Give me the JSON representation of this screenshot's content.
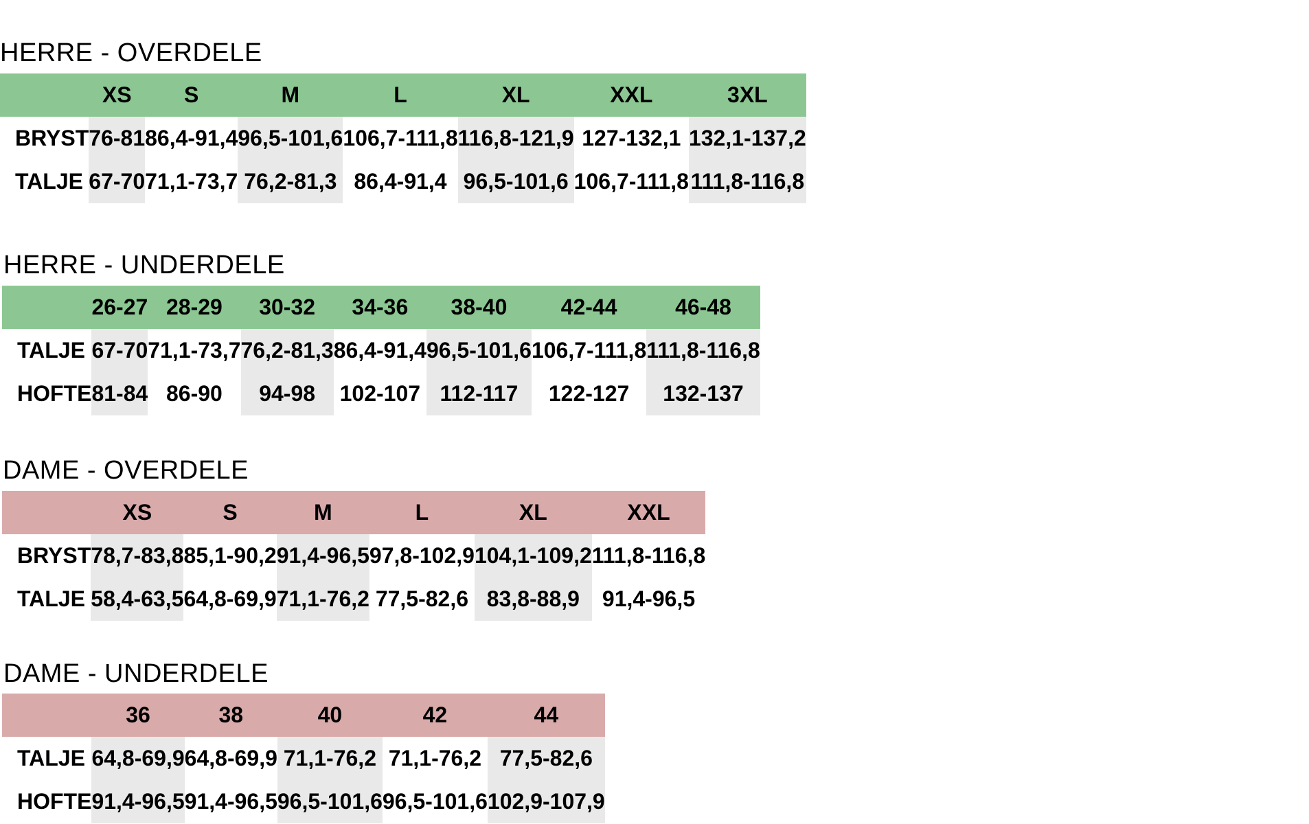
{
  "sections": [
    {
      "title": "HERRE - OVERDELE",
      "theme": "green",
      "header_color": "#8cc793",
      "sizes": [
        "XS",
        "S",
        "M",
        "L",
        "XL",
        "XXL",
        "3XL"
      ],
      "rows": [
        {
          "label": "BRYST",
          "values": [
            "76-81",
            "86,4-91,4",
            "96,5-101,6",
            "106,7-111,8",
            "116,8-121,9",
            "127-132,1",
            "132,1-137,2"
          ]
        },
        {
          "label": "TALJE",
          "values": [
            "67-70",
            "71,1-73,7",
            "76,2-81,3",
            "86,4-91,4",
            "96,5-101,6",
            "106,7-111,8",
            "111,8-116,8"
          ]
        }
      ]
    },
    {
      "title": "HERRE - UNDERDELE",
      "theme": "green",
      "header_color": "#8cc793",
      "sizes": [
        "26-27",
        "28-29",
        "30-32",
        "34-36",
        "38-40",
        "42-44",
        "46-48"
      ],
      "rows": [
        {
          "label": "TALJE",
          "values": [
            "67-70",
            "71,1-73,7",
            "76,2-81,3",
            "86,4-91,4",
            "96,5-101,6",
            "106,7-111,8",
            "111,8-116,8"
          ]
        },
        {
          "label": "HOFTE",
          "values": [
            "81-84",
            "86-90",
            "94-98",
            "102-107",
            "112-117",
            "122-127",
            "132-137"
          ]
        }
      ]
    },
    {
      "title": "DAME - OVERDELE",
      "theme": "pink",
      "header_color": "#d9aaaa",
      "sizes": [
        "XS",
        "S",
        "M",
        "L",
        "XL",
        "XXL"
      ],
      "rows": [
        {
          "label": "BRYST",
          "values": [
            "78,7-83,8",
            "85,1-90,2",
            "91,4-96,5",
            "97,8-102,9",
            "104,1-109,2",
            "111,8-116,8"
          ]
        },
        {
          "label": "TALJE",
          "values": [
            "58,4-63,5",
            "64,8-69,9",
            "71,1-76,2",
            "77,5-82,6",
            "83,8-88,9",
            "91,4-96,5"
          ]
        }
      ]
    },
    {
      "title": "DAME - UNDERDELE",
      "theme": "pink",
      "header_color": "#d9aaaa",
      "sizes": [
        "36",
        "38",
        "40",
        "42",
        "44"
      ],
      "rows": [
        {
          "label": "TALJE",
          "values": [
            "64,8-69,9",
            "64,8-69,9",
            "71,1-76,2",
            "71,1-76,2",
            "77,5-82,6"
          ]
        },
        {
          "label": "HOFTE",
          "values": [
            "91,4-96,5",
            "91,4-96,5",
            "96,5-101,6",
            "96,5-101,6",
            "102,9-107,9"
          ]
        }
      ]
    }
  ]
}
